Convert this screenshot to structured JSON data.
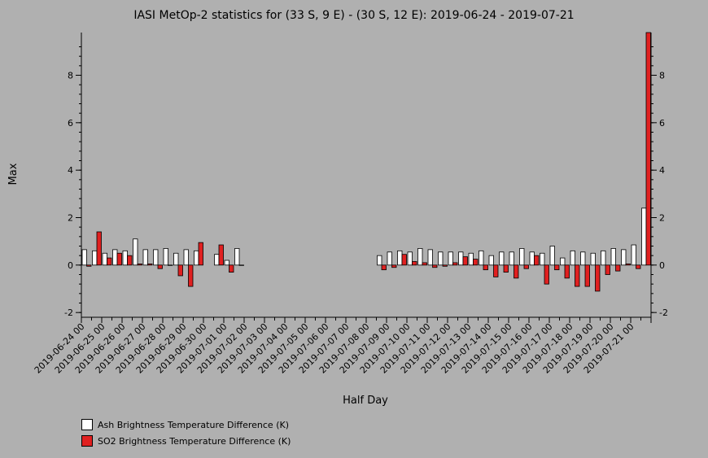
{
  "chart_data": {
    "type": "bar",
    "title": "IASI MetOp-2 statistics for (33 S, 9 E) - (30 S, 12 E): 2019-06-24 - 2019-07-21",
    "xlabel": "Half Day",
    "ylabel": "Max",
    "ylim": [
      -2.2,
      9.8
    ],
    "yticks": [
      -2,
      0,
      2,
      4,
      6,
      8
    ],
    "grid": false,
    "legend_position": "bottom-left",
    "day_labels": [
      "2019-06-24 00",
      "2019-06-25 00",
      "2019-06-26 00",
      "2019-06-27 00",
      "2019-06-28 00",
      "2019-06-29 00",
      "2019-06-30 00",
      "2019-07-01 00",
      "2019-07-02 00",
      "2019-07-03 00",
      "2019-07-04 00",
      "2019-07-05 00",
      "2019-07-06 00",
      "2019-07-07 00",
      "2019-07-08 00",
      "2019-07-09 00",
      "2019-07-10 00",
      "2019-07-11 00",
      "2019-07-12 00",
      "2019-07-13 00",
      "2019-07-14 00",
      "2019-07-15 00",
      "2019-07-16 00",
      "2019-07-17 00",
      "2019-07-18 00",
      "2019-07-19 00",
      "2019-07-20 00",
      "2019-07-21 00"
    ],
    "series": [
      {
        "name": "Ash Brightness Temperature Difference (K)",
        "color": "#ffffff",
        "values": [
          0.65,
          0.6,
          0.5,
          0.65,
          0.6,
          1.1,
          0.65,
          0.65,
          0.7,
          0.5,
          0.65,
          0.6,
          null,
          0.45,
          0.2,
          0.7,
          null,
          null,
          null,
          null,
          null,
          null,
          null,
          null,
          null,
          null,
          null,
          null,
          null,
          0.4,
          0.55,
          0.6,
          0.55,
          0.7,
          0.65,
          0.55,
          0.55,
          0.55,
          0.5,
          0.6,
          0.4,
          0.55,
          0.55,
          0.7,
          0.55,
          0.5,
          0.8,
          0.3,
          0.6,
          0.55,
          0.5,
          0.6,
          0.7,
          0.65,
          0.85,
          2.4
        ]
      },
      {
        "name": "SO2 Brightness Temperature Difference (K)",
        "color": "#e02020",
        "values": [
          -0.05,
          1.4,
          0.3,
          0.5,
          0.4,
          0.05,
          0.05,
          -0.15,
          0.0,
          -0.45,
          -0.9,
          0.95,
          null,
          0.85,
          -0.3,
          0.0,
          null,
          null,
          null,
          null,
          null,
          null,
          null,
          null,
          null,
          null,
          null,
          null,
          null,
          -0.2,
          -0.1,
          0.45,
          0.15,
          0.1,
          -0.1,
          -0.05,
          0.1,
          0.35,
          0.25,
          -0.2,
          -0.5,
          -0.3,
          -0.55,
          -0.15,
          0.4,
          -0.8,
          -0.2,
          -0.55,
          -0.9,
          -0.9,
          -1.1,
          -0.4,
          -0.25,
          0.05,
          -0.15,
          9.8
        ]
      }
    ]
  }
}
